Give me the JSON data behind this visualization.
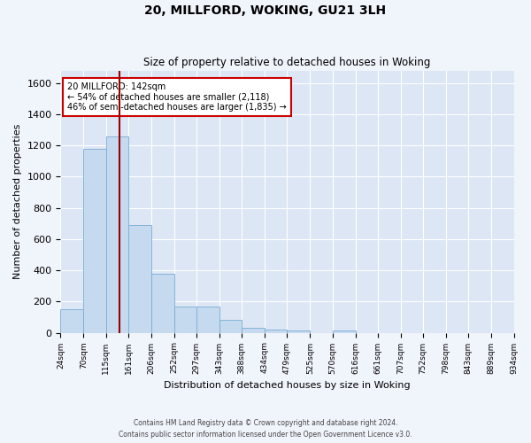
{
  "title1": "20, MILLFORD, WOKING, GU21 3LH",
  "title2": "Size of property relative to detached houses in Woking",
  "xlabel": "Distribution of detached houses by size in Woking",
  "ylabel": "Number of detached properties",
  "bar_color": "#c5d9ef",
  "bar_edge_color": "#7aadd4",
  "background_color": "#dce6f5",
  "grid_color": "#ffffff",
  "fig_bg_color": "#f0f4fb",
  "vline_x": 142,
  "vline_color": "#990000",
  "annotation_line1": "20 MILLFORD: 142sqm",
  "annotation_line2": "← 54% of detached houses are smaller (2,118)",
  "annotation_line3": "46% of semi-detached houses are larger (1,835) →",
  "annotation_box_color": "#ffffff",
  "annotation_box_edge": "#cc0000",
  "bin_edges": [
    24,
    70,
    115,
    161,
    206,
    252,
    297,
    343,
    388,
    434,
    479,
    525,
    570,
    616,
    661,
    707,
    752,
    798,
    843,
    889,
    934
  ],
  "bar_heights": [
    150,
    1180,
    1260,
    690,
    375,
    170,
    170,
    80,
    30,
    20,
    15,
    0,
    15,
    0,
    0,
    0,
    0,
    0,
    0,
    0
  ],
  "ylim": [
    0,
    1680
  ],
  "yticks": [
    0,
    200,
    400,
    600,
    800,
    1000,
    1200,
    1400,
    1600
  ],
  "footer1": "Contains HM Land Registry data © Crown copyright and database right 2024.",
  "footer2": "Contains public sector information licensed under the Open Government Licence v3.0."
}
